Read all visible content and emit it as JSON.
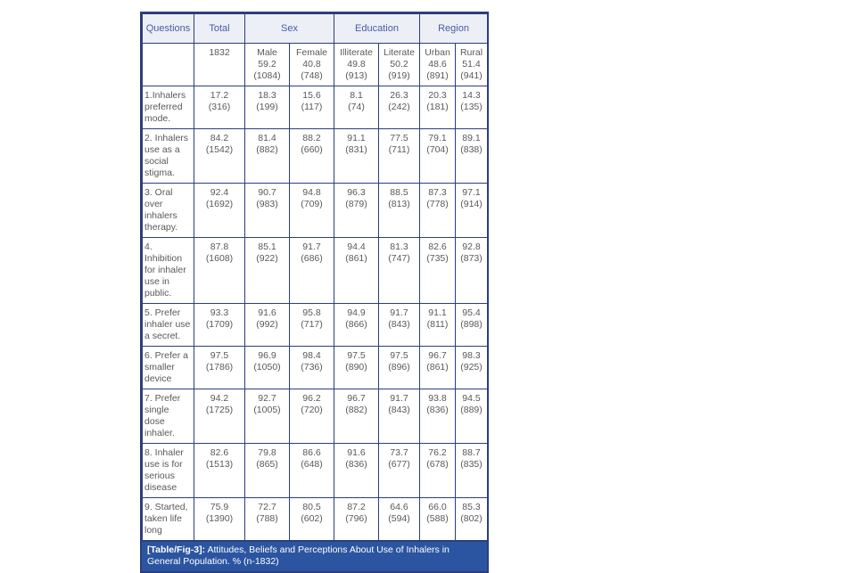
{
  "colors": {
    "border": "#2c3e7d",
    "header_bg": "#edeff6",
    "header_text": "#4a5ba3",
    "body_text": "#58595b",
    "caption_bg": "#2b55a0",
    "caption_text": "#ffffff"
  },
  "table": {
    "groups": {
      "questions": "Questions",
      "total": "Total",
      "sex": "Sex",
      "education": "Education",
      "region": "Region"
    },
    "sub": [
      {
        "name": "",
        "pct": "",
        "n": ""
      },
      {
        "name": "1832",
        "pct": "",
        "n": ""
      },
      {
        "name": "Male",
        "pct": "59.2",
        "n": "(1084)"
      },
      {
        "name": "Female",
        "pct": "40.8",
        "n": "(748)"
      },
      {
        "name": "Illiterate",
        "pct": "49.8",
        "n": "(913)"
      },
      {
        "name": "Literate",
        "pct": "50.2",
        "n": "(919)"
      },
      {
        "name": "Urban",
        "pct": "48.6",
        "n": "(891)"
      },
      {
        "name": "Rural",
        "pct": "51.4",
        "n": "(941)"
      }
    ],
    "rows": [
      {
        "question": "1.Inhalers preferred mode.",
        "cells": [
          {
            "pct": "17.2",
            "n": "(316)"
          },
          {
            "pct": "18.3",
            "n": "(199)"
          },
          {
            "pct": "15.6",
            "n": "(117)"
          },
          {
            "pct": "8.1",
            "n": "(74)"
          },
          {
            "pct": "26.3",
            "n": "(242)"
          },
          {
            "pct": "20.3",
            "n": "(181)"
          },
          {
            "pct": "14.3",
            "n": "(135)"
          }
        ]
      },
      {
        "question": "2. Inhalers use as a social stigma.",
        "cells": [
          {
            "pct": "84.2",
            "n": "(1542)"
          },
          {
            "pct": "81.4",
            "n": "(882)"
          },
          {
            "pct": "88.2",
            "n": "(660)"
          },
          {
            "pct": "91.1",
            "n": "(831)"
          },
          {
            "pct": "77.5",
            "n": "(711)"
          },
          {
            "pct": "79.1",
            "n": "(704)"
          },
          {
            "pct": "89.1",
            "n": "(838)"
          }
        ]
      },
      {
        "question": "3. Oral over inhalers therapy.",
        "cells": [
          {
            "pct": "92.4",
            "n": "(1692)"
          },
          {
            "pct": "90.7",
            "n": "(983)"
          },
          {
            "pct": "94.8",
            "n": "(709)"
          },
          {
            "pct": "96.3",
            "n": "(879)"
          },
          {
            "pct": "88.5",
            "n": "(813)"
          },
          {
            "pct": "87.3",
            "n": "(778)"
          },
          {
            "pct": "97.1",
            "n": "(914)"
          }
        ]
      },
      {
        "question": "4. Inhibition for inhaler use in public.",
        "cells": [
          {
            "pct": "87.8",
            "n": "(1608)"
          },
          {
            "pct": "85.1",
            "n": "(922)"
          },
          {
            "pct": "91.7",
            "n": "(686)"
          },
          {
            "pct": "94.4",
            "n": "(861)"
          },
          {
            "pct": "81.3",
            "n": "(747)"
          },
          {
            "pct": "82.6",
            "n": "(735)"
          },
          {
            "pct": "92.8",
            "n": "(873)"
          }
        ]
      },
      {
        "question": "5. Prefer inhaler use a secret.",
        "cells": [
          {
            "pct": "93.3",
            "n": "(1709)"
          },
          {
            "pct": "91.6",
            "n": "(992)"
          },
          {
            "pct": "95.8",
            "n": "(717)"
          },
          {
            "pct": "94.9",
            "n": "(866)"
          },
          {
            "pct": "91.7",
            "n": "(843)"
          },
          {
            "pct": "91.1",
            "n": "(811)"
          },
          {
            "pct": "95.4",
            "n": "(898)"
          }
        ]
      },
      {
        "question": "6. Prefer a smaller device",
        "cells": [
          {
            "pct": "97.5",
            "n": "(1786)"
          },
          {
            "pct": "96.9",
            "n": "(1050)"
          },
          {
            "pct": "98.4",
            "n": "(736)"
          },
          {
            "pct": "97.5",
            "n": "(890)"
          },
          {
            "pct": "97.5",
            "n": "(896)"
          },
          {
            "pct": "96.7",
            "n": "(861)"
          },
          {
            "pct": "98.3",
            "n": "(925)"
          }
        ]
      },
      {
        "question": "7. Prefer single dose inhaler.",
        "cells": [
          {
            "pct": "94.2",
            "n": "(1725)"
          },
          {
            "pct": "92.7",
            "n": "(1005)"
          },
          {
            "pct": "96.2",
            "n": "(720)"
          },
          {
            "pct": "96.7",
            "n": "(882)"
          },
          {
            "pct": "91.7",
            "n": "(843)"
          },
          {
            "pct": "93.8",
            "n": "(836)"
          },
          {
            "pct": "94.5",
            "n": "(889)"
          }
        ]
      },
      {
        "question": "8. Inhaler use is for serious disease",
        "cells": [
          {
            "pct": "82.6",
            "n": "(1513)"
          },
          {
            "pct": "79.8",
            "n": "(865)"
          },
          {
            "pct": "86.6",
            "n": "(648)"
          },
          {
            "pct": "91.6",
            "n": "(836)"
          },
          {
            "pct": "73.7",
            "n": "(677)"
          },
          {
            "pct": "76.2",
            "n": "(678)"
          },
          {
            "pct": "88.7",
            "n": "(835)"
          }
        ]
      },
      {
        "question": "9. Started, taken life long",
        "cells": [
          {
            "pct": "75.9",
            "n": "(1390)"
          },
          {
            "pct": "72.7",
            "n": "(788)"
          },
          {
            "pct": "80.5",
            "n": "(602)"
          },
          {
            "pct": "87.2",
            "n": "(796)"
          },
          {
            "pct": "64.6",
            "n": "(594)"
          },
          {
            "pct": "66.0",
            "n": "(588)"
          },
          {
            "pct": "85.3",
            "n": "(802)"
          }
        ]
      }
    ]
  },
  "caption": {
    "label": "[Table/Fig-3]:",
    "text": "Attitudes, Beliefs and Perceptions About Use of Inhalers in General Population. % (n-1832)"
  }
}
